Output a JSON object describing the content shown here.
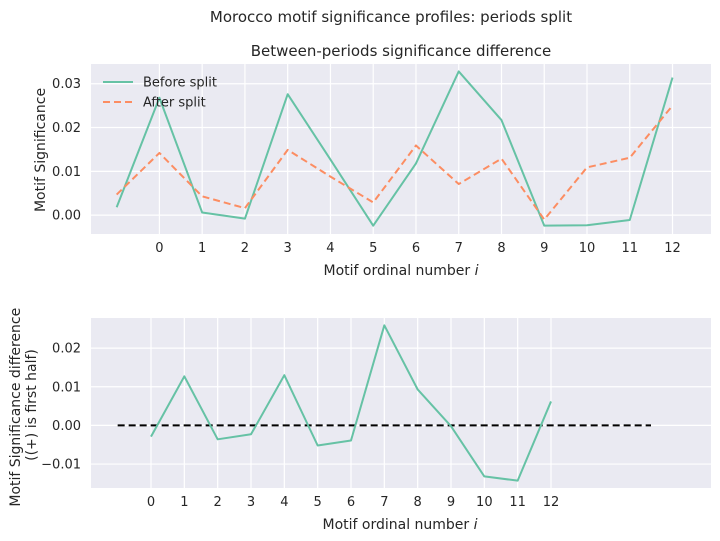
{
  "figure": {
    "suptitle": "Morocco motif significance profiles: periods split"
  },
  "chart_data": [
    {
      "type": "line",
      "title": "Between-periods significance difference",
      "xlabel": "Motif ordinal number",
      "xlabel_italic": "i",
      "ylabel": "Motif Significance",
      "x": [
        -1,
        0,
        1,
        2,
        3,
        4,
        5,
        6,
        7,
        8,
        9,
        10,
        11,
        12
      ],
      "xticks": [
        0,
        1,
        2,
        3,
        4,
        5,
        6,
        7,
        8,
        9,
        10,
        11,
        12
      ],
      "xlim": [
        -1.6,
        12.9
      ],
      "ylim": [
        -0.0043,
        0.0345
      ],
      "yticks": [
        0.0,
        0.01,
        0.02,
        0.03
      ],
      "ytick_labels": [
        "0.00",
        "0.01",
        "0.02",
        "0.03"
      ],
      "grid": true,
      "legend_position": "top-left",
      "series": [
        {
          "name": "Before split",
          "color": "#66c2a5",
          "dash": "solid",
          "values": [
            0.0018,
            0.0268,
            0.0006,
            -0.0008,
            0.0276,
            0.0127,
            -0.0024,
            0.0118,
            0.0328,
            0.0217,
            -0.0024,
            -0.0023,
            -0.0011,
            0.0314
          ]
        },
        {
          "name": "After split",
          "color": "#fc8d62",
          "dash": "dashed",
          "values": [
            0.0047,
            0.0142,
            0.0043,
            0.0016,
            0.0149,
            0.0088,
            0.0029,
            0.0159,
            0.0071,
            0.0129,
            -0.001,
            0.0109,
            0.0131,
            0.025
          ]
        }
      ]
    },
    {
      "type": "line",
      "title": "",
      "xlabel": "Motif ordinal number",
      "xlabel_italic": "i",
      "ylabel_line1": "Motif Significance difference",
      "ylabel_line2": "((+) is first half)",
      "x": [
        0,
        1,
        2,
        3,
        4,
        5,
        6,
        7,
        8,
        9,
        10,
        11,
        12
      ],
      "xticks": [
        0,
        1,
        2,
        3,
        4,
        5,
        6,
        7,
        8,
        9,
        10,
        11,
        12
      ],
      "xlim": [
        -1.8,
        16.8
      ],
      "ylim": [
        -0.0162,
        0.0278
      ],
      "yticks": [
        -0.01,
        0.0,
        0.01,
        0.02
      ],
      "ytick_labels": [
        "−0.01",
        "0.00",
        "0.01",
        "0.02"
      ],
      "grid": true,
      "series": [
        {
          "color": "#66c2a5",
          "dash": "solid",
          "values": [
            -0.0029,
            0.0127,
            -0.0036,
            -0.0023,
            0.013,
            -0.0052,
            -0.0039,
            0.0259,
            0.0093,
            -0.0002,
            -0.0132,
            -0.0143,
            0.0062
          ]
        }
      ],
      "reference_line": {
        "y": 0.0,
        "x_range": [
          -1,
          15
        ],
        "color": "#000000",
        "dash": "dashed"
      }
    }
  ]
}
